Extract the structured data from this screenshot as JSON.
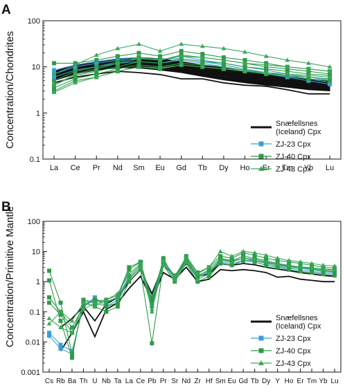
{
  "figure": {
    "panels": [
      "A",
      "B"
    ]
  },
  "colors": {
    "reference": "#111111",
    "zj23": "#3a9fd6",
    "zj40": "#2e9b4a",
    "zj43": "#3aa85a"
  },
  "chart_data": [
    {
      "panel_label": "A",
      "type": "line",
      "ylabel": "Concentration/Chondrites",
      "y_scale": "log",
      "ylim": [
        0.1,
        100
      ],
      "y_ticks": [
        "0.1",
        "1",
        "10",
        "100"
      ],
      "categories": [
        "La",
        "Ce",
        "Pr",
        "Nd",
        "Sm",
        "Eu",
        "Gd",
        "Tb",
        "Dy",
        "Ho",
        "Er",
        "Tm",
        "Yb",
        "Lu"
      ],
      "legend_position": "bottom-right",
      "legend": [
        {
          "label": "Snæfellsnes\n(Iceland) Cpx",
          "marker": "line",
          "color": "#111111"
        },
        {
          "label": "ZJ-23 Cpx",
          "marker": "square",
          "color": "#3a9fd6"
        },
        {
          "label": "ZJ-40 Cpx",
          "marker": "square",
          "color": "#2e9b4a"
        },
        {
          "label": "ZJ-43 Cpx",
          "marker": "triangle",
          "color": "#3aa85a"
        }
      ],
      "reference_band": {
        "name": "Snæfellsnes (Iceland) Cpx",
        "upper": [
          8,
          11,
          13,
          15,
          16,
          15,
          13,
          11,
          9.5,
          8,
          7,
          6,
          5.5,
          5
        ],
        "lower": [
          5,
          7,
          8.5,
          9.5,
          9.5,
          8.5,
          7.5,
          6.2,
          5.2,
          4.5,
          4,
          3.6,
          3.2,
          3
        ]
      },
      "series": [
        {
          "group": "reference",
          "values": [
            4.5,
            6,
            7,
            8,
            7.5,
            6.8,
            5.5,
            5.5,
            4.5,
            4,
            3.8,
            3.2,
            2.6,
            2.6
          ]
        },
        {
          "group": "reference",
          "values": [
            5.5,
            8,
            9.5,
            11,
            11.5,
            10.5,
            9.5,
            8,
            7,
            6,
            5.2,
            4.6,
            4,
            3.6
          ]
        },
        {
          "group": "zj23",
          "values": [
            8.5,
            11,
            13,
            15,
            16,
            14,
            17,
            14,
            12,
            10,
            8.5,
            7,
            6,
            5.2
          ]
        },
        {
          "group": "zj23",
          "values": [
            7,
            10,
            12,
            14,
            15,
            15,
            15,
            13,
            11,
            9,
            7.5,
            6.2,
            5.5,
            4.6
          ]
        },
        {
          "group": "zj23",
          "values": [
            6,
            8.5,
            10,
            12,
            13,
            12,
            14,
            12,
            10,
            8.5,
            7,
            6,
            5,
            4.2
          ]
        },
        {
          "group": "zj40",
          "values": [
            12,
            12,
            14,
            17,
            20,
            17,
            22,
            19,
            16,
            14,
            12,
            10,
            9,
            8
          ]
        },
        {
          "group": "zj40",
          "values": [
            5,
            8,
            10,
            13,
            16,
            14,
            18,
            16,
            14,
            12,
            10,
            9,
            8,
            7
          ]
        },
        {
          "group": "zj40",
          "values": [
            4,
            6.5,
            8,
            10,
            13,
            12,
            15,
            13,
            12,
            10,
            9,
            8,
            7,
            6.5
          ]
        },
        {
          "group": "zj40",
          "values": [
            3.5,
            5.5,
            7,
            9,
            11,
            10,
            12,
            11,
            10,
            8.5,
            7.5,
            6.5,
            6,
            5.5
          ]
        },
        {
          "group": "zj40",
          "values": [
            3,
            5,
            6,
            8,
            10,
            9,
            11,
            10,
            9,
            8,
            7,
            6.5,
            5.5,
            5
          ]
        },
        {
          "group": "zj43",
          "values": [
            7,
            11,
            18,
            25,
            31,
            22,
            31,
            28,
            25,
            21,
            17,
            14,
            12,
            10
          ]
        },
        {
          "group": "zj43",
          "values": [
            4,
            7,
            9,
            12,
            15,
            14,
            17,
            16,
            14,
            12,
            11,
            10,
            9,
            8
          ]
        },
        {
          "group": "zj43",
          "values": [
            2.8,
            4.5,
            6,
            8,
            10,
            9.5,
            11,
            10,
            9,
            8,
            7.5,
            7,
            6.5,
            6
          ]
        }
      ]
    },
    {
      "panel_label": "B",
      "type": "line",
      "ylabel": "Concentration/Primitive Mantle",
      "y_scale": "log",
      "ylim": [
        0.001,
        100
      ],
      "y_ticks": [
        "0.001",
        "0.01",
        "0.1",
        "1",
        "10",
        "100"
      ],
      "categories": [
        "Cs",
        "Rb",
        "Ba",
        "Th",
        "U",
        "Nb",
        "Ta",
        "La",
        "Ce",
        "Pb",
        "Pr",
        "Sr",
        "Nd",
        "Zr",
        "Hf",
        "Sm",
        "Eu",
        "Gd",
        "Tb",
        "Dy",
        "Y",
        "Ho",
        "Er",
        "Tm",
        "Yb",
        "Lu"
      ],
      "legend_position": "bottom-right",
      "legend": [
        {
          "label": "Snæfellsnes\n(Iceland) Cpx",
          "marker": "line",
          "color": "#111111"
        },
        {
          "label": "ZJ-23 Cpx",
          "marker": "square",
          "color": "#3a9fd6"
        },
        {
          "label": "ZJ-40 Cpx",
          "marker": "square",
          "color": "#2e9b4a"
        },
        {
          "label": "ZJ-43 Cpx",
          "marker": "triangle",
          "color": "#3aa85a"
        }
      ],
      "series": [
        {
          "group": "reference",
          "values": [
            null,
            0.005,
            0.02,
            0.1,
            0.015,
            0.12,
            0.2,
            0.6,
            1.5,
            0.25,
            2,
            1.2,
            3,
            1,
            1.2,
            2.5,
            2.3,
            2.5,
            2.3,
            2,
            1.4,
            1.5,
            1.2,
            1.1,
            1,
            1
          ]
        },
        {
          "group": "reference",
          "values": [
            null,
            0.03,
            0.06,
            0.15,
            0.05,
            0.18,
            0.3,
            1,
            2.5,
            0.4,
            3.5,
            1.6,
            4.5,
            1.5,
            1.8,
            4,
            3.5,
            4,
            3.6,
            3,
            2.6,
            2.3,
            2,
            1.8,
            1.6,
            1.5
          ]
        },
        {
          "group": "zj23",
          "values": [
            0.016,
            0.006,
            0.004,
            0.2,
            0.25,
            0.2,
            0.3,
            1.5,
            3.5,
            0.2,
            4.5,
            1.5,
            5,
            1.6,
            2.2,
            5,
            4.5,
            6,
            5.5,
            4.5,
            3.5,
            3,
            2.8,
            2.5,
            2.2,
            2
          ]
        },
        {
          "group": "zj23",
          "values": [
            0.02,
            0.008,
            0.005,
            0.15,
            0.3,
            0.15,
            0.25,
            1.2,
            3,
            0.3,
            4,
            1.3,
            4.5,
            1.4,
            2,
            4.5,
            4,
            5,
            5,
            4,
            3.2,
            2.8,
            2.5,
            2.2,
            2,
            1.8
          ]
        },
        {
          "group": "zj40",
          "values": [
            2.3,
            0.2,
            0.004,
            0.2,
            0.15,
            0.1,
            0.15,
            1,
            2.5,
            0.009,
            3.5,
            1,
            4,
            1,
            1.5,
            4,
            3.5,
            5,
            4.5,
            3.5,
            3,
            2.5,
            2.2,
            2,
            1.8,
            1.6
          ]
        },
        {
          "group": "zj40",
          "values": [
            1.1,
            0.05,
            0.003,
            0.25,
            0.2,
            0.15,
            0.2,
            1.5,
            3.5,
            0.3,
            5,
            1.3,
            6,
            1.5,
            2.5,
            6,
            5,
            7,
            6,
            5,
            4,
            3.5,
            3,
            2.8,
            2.5,
            2.3
          ]
        },
        {
          "group": "zj40",
          "values": [
            0.3,
            0.1,
            0.03,
            0.15,
            0.25,
            0.2,
            0.3,
            2.5,
            4.5,
            0.2,
            6,
            1.2,
            7,
            2,
            3,
            7,
            6,
            9,
            7.5,
            6,
            5,
            4.5,
            4,
            3.5,
            3,
            2.8
          ]
        },
        {
          "group": "zj40",
          "values": [
            0.2,
            0.08,
            0.02,
            0.18,
            0.22,
            0.25,
            0.35,
            3,
            4.5,
            0.15,
            4.5,
            1.6,
            5,
            1.5,
            2,
            5.5,
            4.8,
            6,
            5,
            4.2,
            3.6,
            3.2,
            3,
            2.6,
            2.3,
            2.1
          ]
        },
        {
          "group": "zj43",
          "values": [
            0.04,
            0.1,
            0.05,
            0.2,
            0.15,
            0.25,
            0.4,
            1.8,
            4,
            0.1,
            5,
            1.5,
            6.5,
            1.8,
            3,
            10,
            7,
            10,
            9,
            7.5,
            6,
            5,
            4.5,
            4,
            3.5,
            3.3
          ]
        },
        {
          "group": "zj43",
          "values": [
            0.06,
            0.03,
            0.02,
            0.12,
            0.2,
            0.22,
            0.3,
            1.3,
            3,
            0.12,
            3.5,
            1.1,
            4.5,
            1.2,
            1.8,
            5,
            4.5,
            6,
            5.5,
            4.5,
            3.8,
            3.4,
            3.1,
            2.9,
            2.6,
            2.5
          ]
        }
      ]
    }
  ]
}
